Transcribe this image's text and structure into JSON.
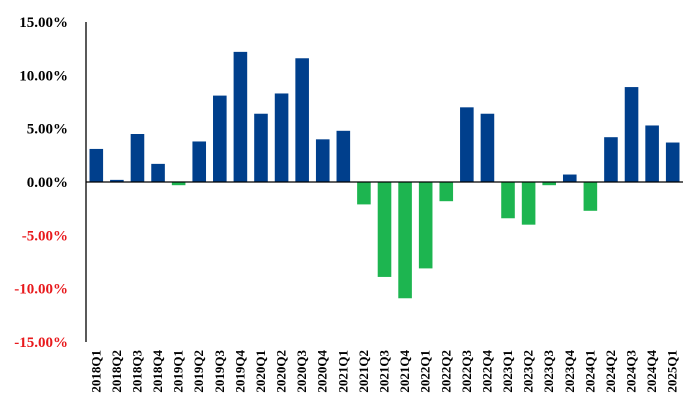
{
  "chart_data": {
    "type": "bar",
    "title": "",
    "xlabel": "",
    "ylabel": "",
    "ylim": [
      -15,
      15
    ],
    "yticks": [
      15,
      10,
      5,
      0,
      -5,
      -10,
      -15
    ],
    "ytick_labels": [
      "15.00%",
      "10.00%",
      "5.00%",
      "0.00%",
      "-5.00%",
      "-10.00%",
      "-15.00%"
    ],
    "positive_color": "#003F8C",
    "negative_color": "#1DB550",
    "positive_label_color": "#000000",
    "negative_label_color": "#E8191C",
    "categories": [
      "2018Q1",
      "2018Q2",
      "2018Q3",
      "2018Q4",
      "2019Q1",
      "2019Q2",
      "2019Q3",
      "2019Q4",
      "2020Q1",
      "2020Q2",
      "2020Q3",
      "2020Q4",
      "2021Q1",
      "2021Q2",
      "2021Q3",
      "2021Q4",
      "2022Q1",
      "2022Q2",
      "2022Q3",
      "2022Q4",
      "2023Q1",
      "2023Q2",
      "2023Q3",
      "2023Q4",
      "2024Q1",
      "2024Q2",
      "2024Q3",
      "2024Q4",
      "2025Q1"
    ],
    "values": [
      3.1,
      0.2,
      4.5,
      1.7,
      -0.3,
      3.8,
      8.1,
      12.2,
      6.4,
      8.3,
      11.6,
      4.0,
      4.8,
      -2.1,
      -8.9,
      -10.9,
      -8.1,
      -1.8,
      7.0,
      6.4,
      -3.4,
      -4.0,
      -0.3,
      0.7,
      -2.7,
      4.2,
      8.9,
      5.3,
      3.7
    ]
  }
}
